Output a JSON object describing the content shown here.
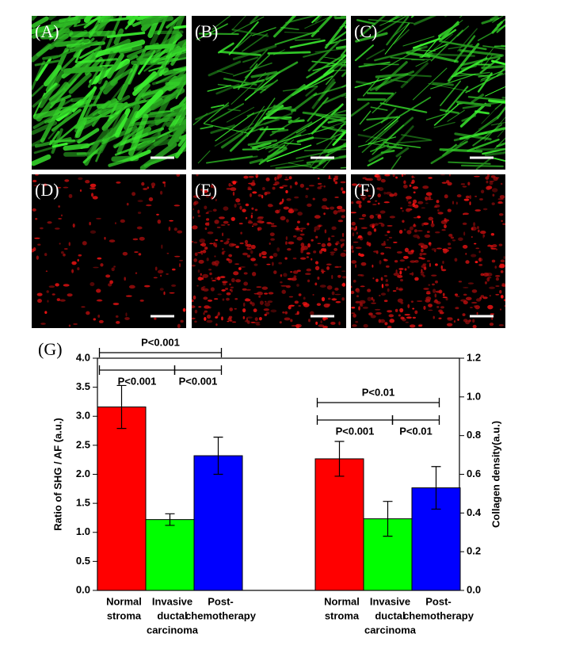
{
  "panels": [
    "(A)",
    "(B)",
    "(C)",
    "(D)",
    "(E)",
    "(F)"
  ],
  "chart_data": {
    "type": "bar",
    "panel_label": "(G)",
    "ylabel": "Ratio of SHG / AF (a.u.)",
    "y2label": "Collagen density(a.u.)",
    "ylim": [
      0,
      4
    ],
    "yticks": [
      {
        "value": 0,
        "label": "0.0"
      },
      0.5,
      {
        "value": 1,
        "label": "1.0"
      },
      1.5,
      {
        "value": 2,
        "label": "2.0"
      },
      2.5,
      {
        "value": 3,
        "label": "3.0"
      },
      3.5,
      {
        "value": 4,
        "label": "4.0"
      }
    ],
    "y2lim": [
      0,
      1.2
    ],
    "y2ticks": [
      {
        "value": 0,
        "label": "0.0"
      },
      0.2,
      0.4,
      0.6,
      0.8,
      {
        "value": 1,
        "label": "1.0"
      },
      1.2
    ],
    "colors": [
      "#ff0000",
      "#00ff00",
      "#0000ff"
    ],
    "groups": [
      {
        "axis": "y",
        "categories": [
          [
            "Normal",
            "stroma"
          ],
          [
            "Invasive",
            "ductal",
            "carcinoma"
          ],
          [
            "Post-",
            "chemotherapy"
          ]
        ],
        "values": [
          3.16,
          1.22,
          2.32
        ],
        "errors": [
          0.37,
          0.1,
          0.32
        ],
        "p_labels": [
          "P<0.001",
          "P<0.001",
          "P<0.001"
        ]
      },
      {
        "axis": "y2",
        "categories": [
          [
            "Normal",
            "stroma"
          ],
          [
            "Invasive",
            "ductal",
            "carcinoma"
          ],
          [
            "Post-",
            "chemotherapy"
          ]
        ],
        "values": [
          0.68,
          0.37,
          0.53
        ],
        "errors": [
          0.09,
          0.09,
          0.11
        ],
        "p_labels": [
          "P<0.001",
          "P<0.01",
          "P<0.01"
        ]
      }
    ]
  }
}
